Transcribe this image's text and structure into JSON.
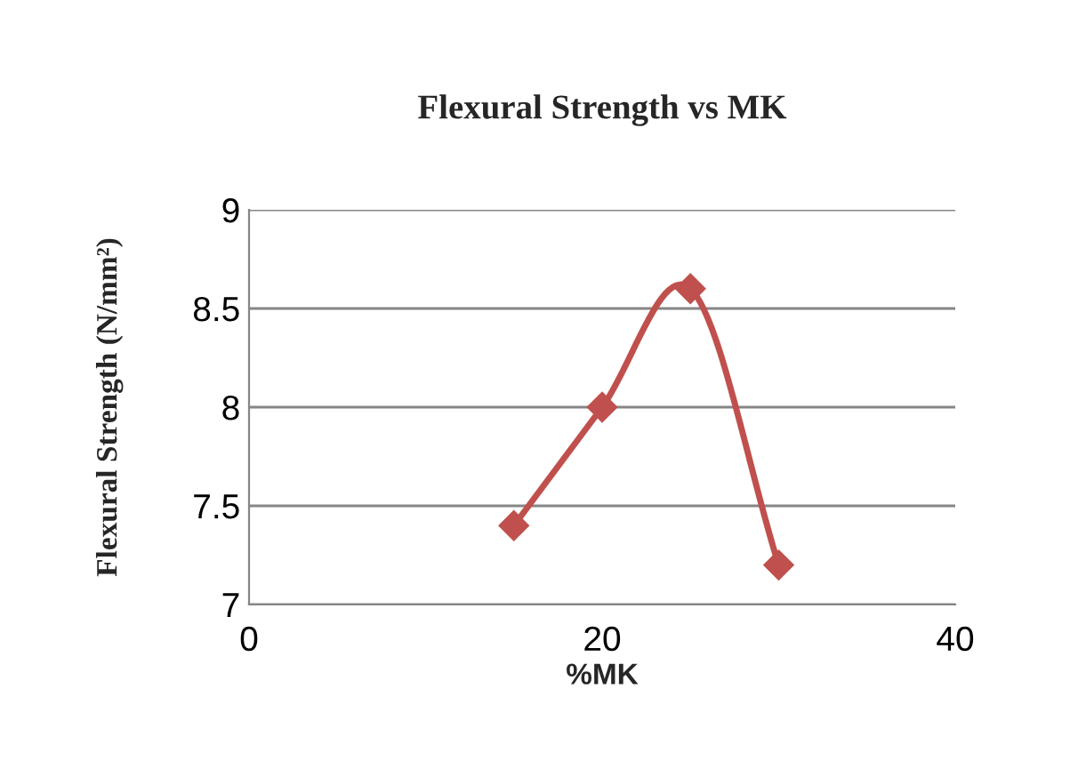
{
  "chart_data": {
    "type": "line",
    "title": "Flexural Strength vs MK",
    "xlabel": "%MK",
    "ylabel": "Flexural Strength (N/mm²)",
    "x": [
      15,
      20,
      25,
      30
    ],
    "series": [
      {
        "color": "#c0504d",
        "values": [
          7.4,
          8.0,
          8.6,
          7.2
        ]
      }
    ],
    "xlim": [
      0,
      40
    ],
    "xticks": [
      0,
      20,
      40
    ],
    "ylim": [
      7,
      9
    ],
    "yticks": [
      7,
      7.5,
      8,
      8.5,
      9
    ],
    "grid": "y",
    "marker": "diamond",
    "line_style": "solid",
    "legend": false
  }
}
